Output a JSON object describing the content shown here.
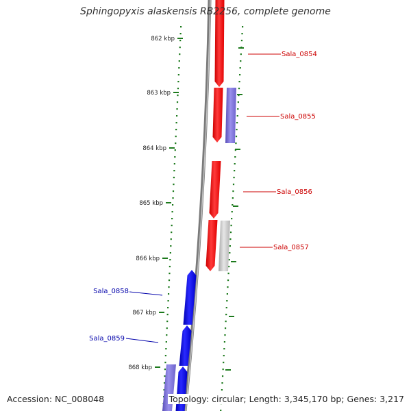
{
  "title": "Sphingopyxis alaskensis RB2256, complete genome",
  "accession": "Accession: NC_008048",
  "summary": "Topology: circular; Length: 3,345,170 bp; Genes: 3,217",
  "colors": {
    "background": "#ffffff",
    "backbone": "#8a8a8a",
    "tick_major": "#1d7a1d",
    "forward_gene": "#ff0000",
    "reverse_gene": "#0000ff",
    "other_gene": "#7b6fd6",
    "gray_gene": "#c8c8c8",
    "forward_label": "#cc0000",
    "reverse_label": "#0000aa"
  },
  "kbp_labels": [
    {
      "text": "862 kbp",
      "kbp": 862
    },
    {
      "text": "863 kbp",
      "kbp": 863
    },
    {
      "text": "864 kbp",
      "kbp": 864
    },
    {
      "text": "865 kbp",
      "kbp": 865
    },
    {
      "text": "866 kbp",
      "kbp": 866
    },
    {
      "text": "867 kbp",
      "kbp": 867
    },
    {
      "text": "868 kbp",
      "kbp": 868
    }
  ],
  "genes": [
    {
      "label": "Sala_0854",
      "strand": "forward",
      "color": "red"
    },
    {
      "label": "Sala_0855",
      "strand": "forward",
      "color": "red"
    },
    {
      "label": "Sala_0856",
      "strand": "forward",
      "color": "red"
    },
    {
      "label": "Sala_0857",
      "strand": "forward",
      "color": "red"
    },
    {
      "label": "Sala_0858",
      "strand": "reverse",
      "color": "blue"
    },
    {
      "label": "Sala_0859",
      "strand": "reverse",
      "color": "blue"
    }
  ]
}
